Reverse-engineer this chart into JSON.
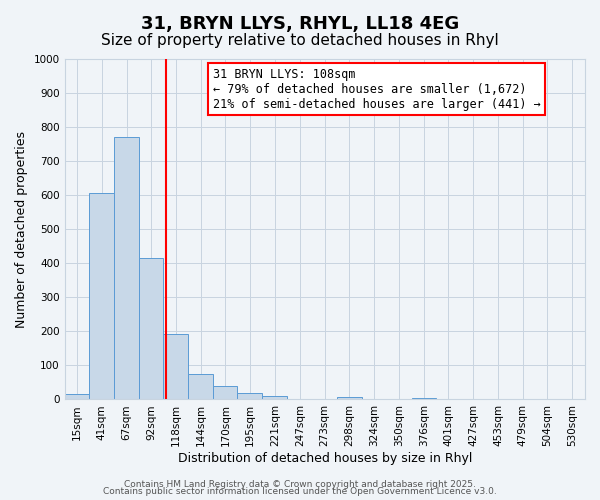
{
  "title": "31, BRYN LLYS, RHYL, LL18 4EG",
  "subtitle": "Size of property relative to detached houses in Rhyl",
  "xlabel": "Distribution of detached houses by size in Rhyl",
  "ylabel": "Number of detached properties",
  "bar_labels": [
    "15sqm",
    "41sqm",
    "67sqm",
    "92sqm",
    "118sqm",
    "144sqm",
    "170sqm",
    "195sqm",
    "221sqm",
    "247sqm",
    "273sqm",
    "298sqm",
    "324sqm",
    "350sqm",
    "376sqm",
    "401sqm",
    "427sqm",
    "453sqm",
    "479sqm",
    "504sqm",
    "530sqm"
  ],
  "bar_values": [
    15,
    605,
    770,
    415,
    192,
    75,
    40,
    18,
    10,
    0,
    0,
    7,
    0,
    0,
    5,
    0,
    0,
    0,
    0,
    0,
    0
  ],
  "bin_edges": [
    2.5,
    28,
    54,
    80,
    105,
    131,
    157,
    182,
    208,
    234,
    260,
    285,
    311,
    337,
    363,
    388,
    414,
    440,
    466,
    491,
    517,
    543
  ],
  "bar_color": "#c8d8e8",
  "bar_edgecolor": "#5b9bd5",
  "vline_x": 108,
  "vline_color": "red",
  "annotation_title": "31 BRYN LLYS: 108sqm",
  "annotation_line1": "← 79% of detached houses are smaller (1,672)",
  "annotation_line2": "21% of semi-detached houses are larger (441) →",
  "annotation_box_color": "white",
  "annotation_box_edgecolor": "red",
  "ylim": [
    0,
    1000
  ],
  "yticks": [
    0,
    100,
    200,
    300,
    400,
    500,
    600,
    700,
    800,
    900,
    1000
  ],
  "footer_line1": "Contains HM Land Registry data © Crown copyright and database right 2025.",
  "footer_line2": "Contains public sector information licensed under the Open Government Licence v3.0.",
  "bg_color": "#f0f4f8",
  "plot_bg_color": "#f0f4f8",
  "grid_color": "#c8d4e0",
  "title_fontsize": 13,
  "subtitle_fontsize": 11,
  "label_fontsize": 9,
  "tick_fontsize": 7.5,
  "annotation_fontsize": 8.5,
  "footer_fontsize": 6.5
}
